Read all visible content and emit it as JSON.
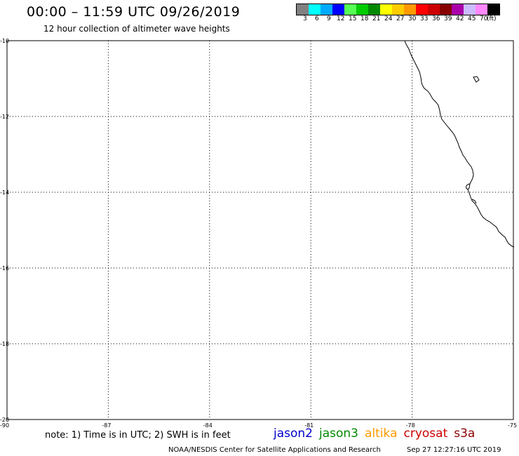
{
  "header": {
    "title": "00:00 – 11:59 UTC 09/26/2019",
    "subtitle": "12 hour collection of altimeter wave heights"
  },
  "color_scale": {
    "unit": "(ft)",
    "entries": [
      {
        "label": "3",
        "color": "#808080"
      },
      {
        "label": "6",
        "color": "#00ffff"
      },
      {
        "label": "9",
        "color": "#00aaff"
      },
      {
        "label": "12",
        "color": "#0000ff"
      },
      {
        "label": "15",
        "color": "#55ff55"
      },
      {
        "label": "18",
        "color": "#00cc00"
      },
      {
        "label": "21",
        "color": "#008800"
      },
      {
        "label": "24",
        "color": "#ffff00"
      },
      {
        "label": "27",
        "color": "#ffcc00"
      },
      {
        "label": "30",
        "color": "#ff9900"
      },
      {
        "label": "33",
        "color": "#ff0000"
      },
      {
        "label": "36",
        "color": "#cc0000"
      },
      {
        "label": "39",
        "color": "#880000"
      },
      {
        "label": "42",
        "color": "#aa00aa"
      },
      {
        "label": "45",
        "color": "#ccbbff"
      },
      {
        "label": "70",
        "color": "#ff88ff"
      },
      {
        "label": "",
        "color": "#000000"
      }
    ]
  },
  "map": {
    "lon_range": [
      -90,
      -75
    ],
    "lat_range": [
      -20,
      -10
    ],
    "lon_ticks": [
      "-90",
      "-87",
      "-84",
      "-81",
      "-78",
      "-75"
    ],
    "lat_ticks": [
      "-10",
      "-12",
      "-14",
      "-16",
      "-18",
      "-20"
    ],
    "gridlines": "dotted"
  },
  "footer": {
    "note": "note: 1) Time is in UTC; 2) SWH is in feet",
    "satellites": [
      {
        "name": "jason2",
        "color": "#0000cc"
      },
      {
        "name": "jason3",
        "color": "#008800"
      },
      {
        "name": "altika",
        "color": "#ff9900"
      },
      {
        "name": "cryosat",
        "color": "#cc0000"
      },
      {
        "name": "s3a",
        "color": "#880000"
      }
    ],
    "credit": "NOAA/NESDIS Center for Satellite Applications and Research",
    "timestamp": "Sep 27 12:27:16 UTC 2019"
  }
}
